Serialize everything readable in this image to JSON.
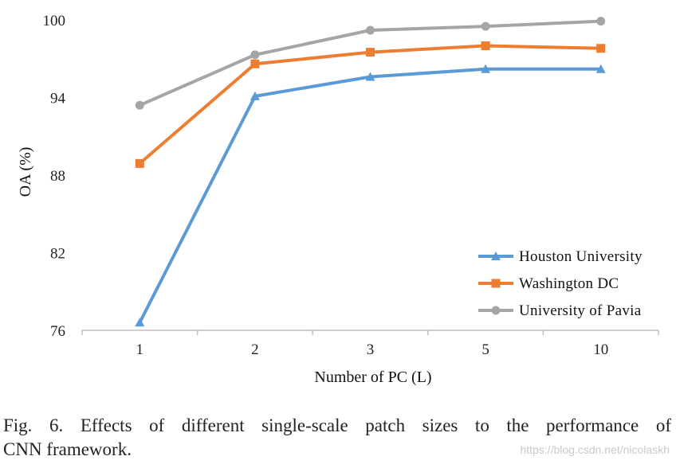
{
  "chart_data": {
    "type": "line",
    "categories": [
      "1",
      "2",
      "3",
      "5",
      "10"
    ],
    "series": [
      {
        "name": "Houston University",
        "values": [
          76.6,
          94.1,
          95.6,
          96.2,
          96.2
        ],
        "color": "#5B9BD5",
        "marker": "triangle"
      },
      {
        "name": "Washington DC",
        "values": [
          88.9,
          96.6,
          97.5,
          98.0,
          97.8
        ],
        "color": "#ED7D31",
        "marker": "square"
      },
      {
        "name": "University of Pavia",
        "values": [
          93.4,
          97.3,
          99.2,
          99.5,
          99.9
        ],
        "color": "#A5A5A5",
        "marker": "circle"
      }
    ],
    "xlabel": "Number of PC (L)",
    "ylabel": "OA (%)",
    "ylim": [
      76,
      100
    ],
    "yticks": [
      76,
      82,
      88,
      94,
      100
    ],
    "ytick_labels": [
      "76",
      "82",
      "88",
      "94",
      "100"
    ],
    "legend_position": "bottom-right",
    "grid": false
  },
  "caption": {
    "line1": "Fig. 6.   Effects of different single-scale patch sizes to the performance of",
    "line2": "CNN framework."
  },
  "watermark": "https://blog.csdn.net/nicolaskh"
}
